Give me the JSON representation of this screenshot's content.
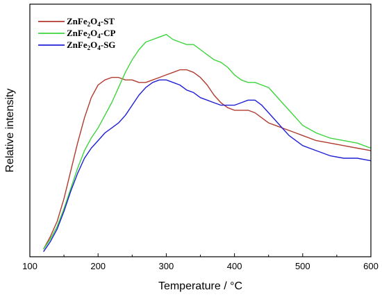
{
  "chart_data": {
    "type": "line",
    "xlabel": "Temperature / °C",
    "ylabel": "Relative intensity",
    "xlim": [
      100,
      600
    ],
    "ylim": [
      0,
      1
    ],
    "x_ticks": [
      "100",
      "200",
      "300",
      "400",
      "500",
      "600"
    ],
    "y_ticks": [],
    "grid": false,
    "legend_position": "top-left",
    "series": [
      {
        "name": "ZnFe2O4-ST",
        "legend_base": "ZnFe",
        "legend_sub1": "2",
        "legend_mid": "O",
        "legend_sub2": "4",
        "legend_suffix": "-ST",
        "color": "#b03a2e",
        "x": [
          120,
          130,
          140,
          150,
          160,
          170,
          180,
          190,
          200,
          210,
          220,
          230,
          240,
          250,
          260,
          270,
          280,
          290,
          300,
          310,
          320,
          330,
          340,
          350,
          360,
          370,
          380,
          390,
          400,
          410,
          420,
          430,
          440,
          450,
          460,
          470,
          480,
          490,
          500,
          520,
          540,
          560,
          580,
          600
        ],
        "y": [
          0.03,
          0.08,
          0.14,
          0.23,
          0.34,
          0.45,
          0.55,
          0.63,
          0.68,
          0.7,
          0.71,
          0.71,
          0.7,
          0.7,
          0.69,
          0.69,
          0.7,
          0.71,
          0.72,
          0.73,
          0.74,
          0.74,
          0.73,
          0.71,
          0.68,
          0.64,
          0.61,
          0.59,
          0.58,
          0.58,
          0.58,
          0.57,
          0.55,
          0.53,
          0.52,
          0.51,
          0.5,
          0.49,
          0.48,
          0.46,
          0.45,
          0.44,
          0.43,
          0.42
        ]
      },
      {
        "name": "ZnFe2O4-CP",
        "legend_base": "ZnFe",
        "legend_sub1": "2",
        "legend_mid": "O",
        "legend_sub2": "4",
        "legend_suffix": "-CP",
        "color": "#3cd43c",
        "x": [
          120,
          130,
          140,
          150,
          160,
          170,
          180,
          190,
          200,
          210,
          220,
          230,
          240,
          250,
          260,
          270,
          280,
          290,
          300,
          310,
          320,
          330,
          340,
          350,
          360,
          370,
          380,
          390,
          400,
          410,
          420,
          430,
          440,
          450,
          460,
          470,
          480,
          490,
          500,
          520,
          540,
          560,
          580,
          600
        ],
        "y": [
          0.03,
          0.07,
          0.12,
          0.19,
          0.27,
          0.35,
          0.42,
          0.47,
          0.51,
          0.56,
          0.61,
          0.67,
          0.73,
          0.78,
          0.82,
          0.85,
          0.86,
          0.87,
          0.88,
          0.86,
          0.85,
          0.84,
          0.84,
          0.82,
          0.8,
          0.78,
          0.77,
          0.75,
          0.72,
          0.7,
          0.69,
          0.69,
          0.68,
          0.67,
          0.64,
          0.61,
          0.58,
          0.55,
          0.52,
          0.49,
          0.47,
          0.46,
          0.45,
          0.43
        ]
      },
      {
        "name": "ZnFe2O4-SG",
        "legend_base": "ZnFe",
        "legend_sub1": "2",
        "legend_mid": "O",
        "legend_sub2": "4",
        "legend_suffix": "-SG",
        "color": "#1f1fd6",
        "x": [
          120,
          130,
          140,
          150,
          160,
          170,
          180,
          190,
          200,
          210,
          220,
          230,
          240,
          250,
          260,
          270,
          280,
          290,
          300,
          310,
          320,
          330,
          340,
          350,
          360,
          370,
          380,
          390,
          400,
          410,
          420,
          430,
          440,
          450,
          460,
          470,
          480,
          490,
          500,
          520,
          540,
          560,
          580,
          600
        ],
        "y": [
          0.02,
          0.06,
          0.11,
          0.18,
          0.26,
          0.33,
          0.39,
          0.43,
          0.46,
          0.49,
          0.51,
          0.53,
          0.56,
          0.6,
          0.64,
          0.67,
          0.69,
          0.7,
          0.7,
          0.69,
          0.68,
          0.66,
          0.65,
          0.63,
          0.62,
          0.61,
          0.6,
          0.6,
          0.6,
          0.61,
          0.62,
          0.62,
          0.6,
          0.57,
          0.54,
          0.51,
          0.48,
          0.46,
          0.44,
          0.42,
          0.4,
          0.39,
          0.39,
          0.38
        ]
      }
    ]
  }
}
